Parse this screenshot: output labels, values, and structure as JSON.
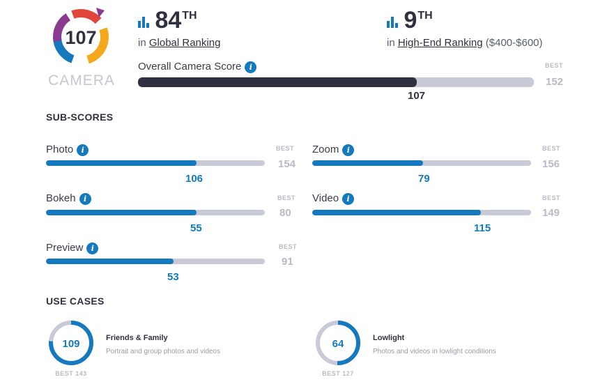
{
  "logo": {
    "score": "107",
    "category": "CAMERA",
    "colors": [
      "#8a3a8f",
      "#e2463a",
      "#f6a81c",
      "#1479bd"
    ]
  },
  "global_rank": {
    "number": "84",
    "suffix": "TH",
    "prefix": "in",
    "link": "Global Ranking"
  },
  "segment_rank": {
    "number": "9",
    "suffix": "TH",
    "prefix": "in",
    "link": "High-End Ranking",
    "extra": "($400-$600)"
  },
  "overall": {
    "label": "Overall Camera Score",
    "score": "107",
    "best_label": "BEST",
    "best": "152",
    "fraction": 0.704
  },
  "subscores": {
    "title": "SUB-SCORES",
    "items": [
      {
        "label": "Photo",
        "score": "106",
        "best_label": "BEST",
        "best": "154",
        "fraction": 0.688
      },
      {
        "label": "Zoom",
        "score": "79",
        "best_label": "BEST",
        "best": "156",
        "fraction": 0.506
      },
      {
        "label": "Bokeh",
        "score": "55",
        "best_label": "BEST",
        "best": "80",
        "fraction": 0.688
      },
      {
        "label": "Video",
        "score": "115",
        "best_label": "BEST",
        "best": "149",
        "fraction": 0.772
      },
      {
        "label": "Preview",
        "score": "53",
        "best_label": "BEST",
        "best": "91",
        "fraction": 0.582
      }
    ]
  },
  "use_cases": {
    "title": "USE CASES",
    "items": [
      {
        "score": "109",
        "title": "Friends & Family",
        "desc": "Portrait and group photos and videos",
        "best": "BEST 143",
        "fraction": 0.762
      },
      {
        "score": "64",
        "title": "Lowlight",
        "desc": "Photos and videos in lowlight conditions",
        "best": "BEST 127",
        "fraction": 0.504
      }
    ]
  },
  "icons": {
    "info": "i",
    "rank": "bar-chart-icon"
  }
}
